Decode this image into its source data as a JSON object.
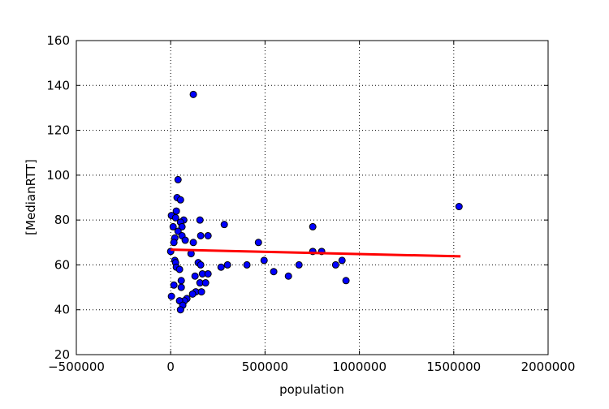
{
  "chart_data": {
    "type": "scatter",
    "xlabel": "population",
    "ylabel": "[MedianRTT]",
    "xlim": [
      -500000,
      2000000
    ],
    "ylim": [
      20,
      160
    ],
    "xticks": [
      {
        "value": -500000,
        "label": "−500000"
      },
      0,
      500000,
      1000000,
      1500000,
      2000000
    ],
    "yticks": [
      20,
      40,
      60,
      80,
      100,
      120,
      140,
      160
    ],
    "grid": true,
    "series": [
      {
        "type": "scatter",
        "color": "#0000ff",
        "x": [
          120000,
          39000,
          34000,
          52000,
          30000,
          4000,
          26000,
          69000,
          155000,
          52000,
          13000,
          60000,
          753000,
          39000,
          60000,
          159000,
          198000,
          22000,
          77000,
          17000,
          120000,
          465000,
          284000,
          0,
          108000,
          753000,
          800000,
          22000,
          495000,
          908000,
          26000,
          146000,
          159000,
          301000,
          404000,
          680000,
          874000,
          30000,
          47000,
          267000,
          546000,
          129000,
          624000,
          168000,
          198000,
          56000,
          929000,
          17000,
          56000,
          155000,
          185000,
          133000,
          116000,
          163000,
          4000,
          86000,
          73000,
          47000,
          64000,
          52000,
          1528000
        ],
        "values": [
          136,
          98,
          90,
          89,
          84,
          82,
          81,
          80,
          80,
          79,
          77,
          77,
          77,
          75,
          73,
          73,
          73,
          72,
          71,
          70,
          70,
          70,
          78,
          66,
          65,
          66,
          66,
          62,
          62,
          62,
          61,
          61,
          60,
          60,
          60,
          60,
          60,
          59,
          58,
          59,
          57,
          55,
          55,
          56,
          56,
          53,
          53,
          51,
          50,
          52,
          52,
          48,
          47,
          48,
          46,
          45,
          44,
          44,
          42,
          40,
          86
        ]
      },
      {
        "type": "line",
        "color": "#ff0000",
        "x": [
          0,
          1536000
        ],
        "values": [
          66.8,
          63.8
        ]
      }
    ]
  }
}
